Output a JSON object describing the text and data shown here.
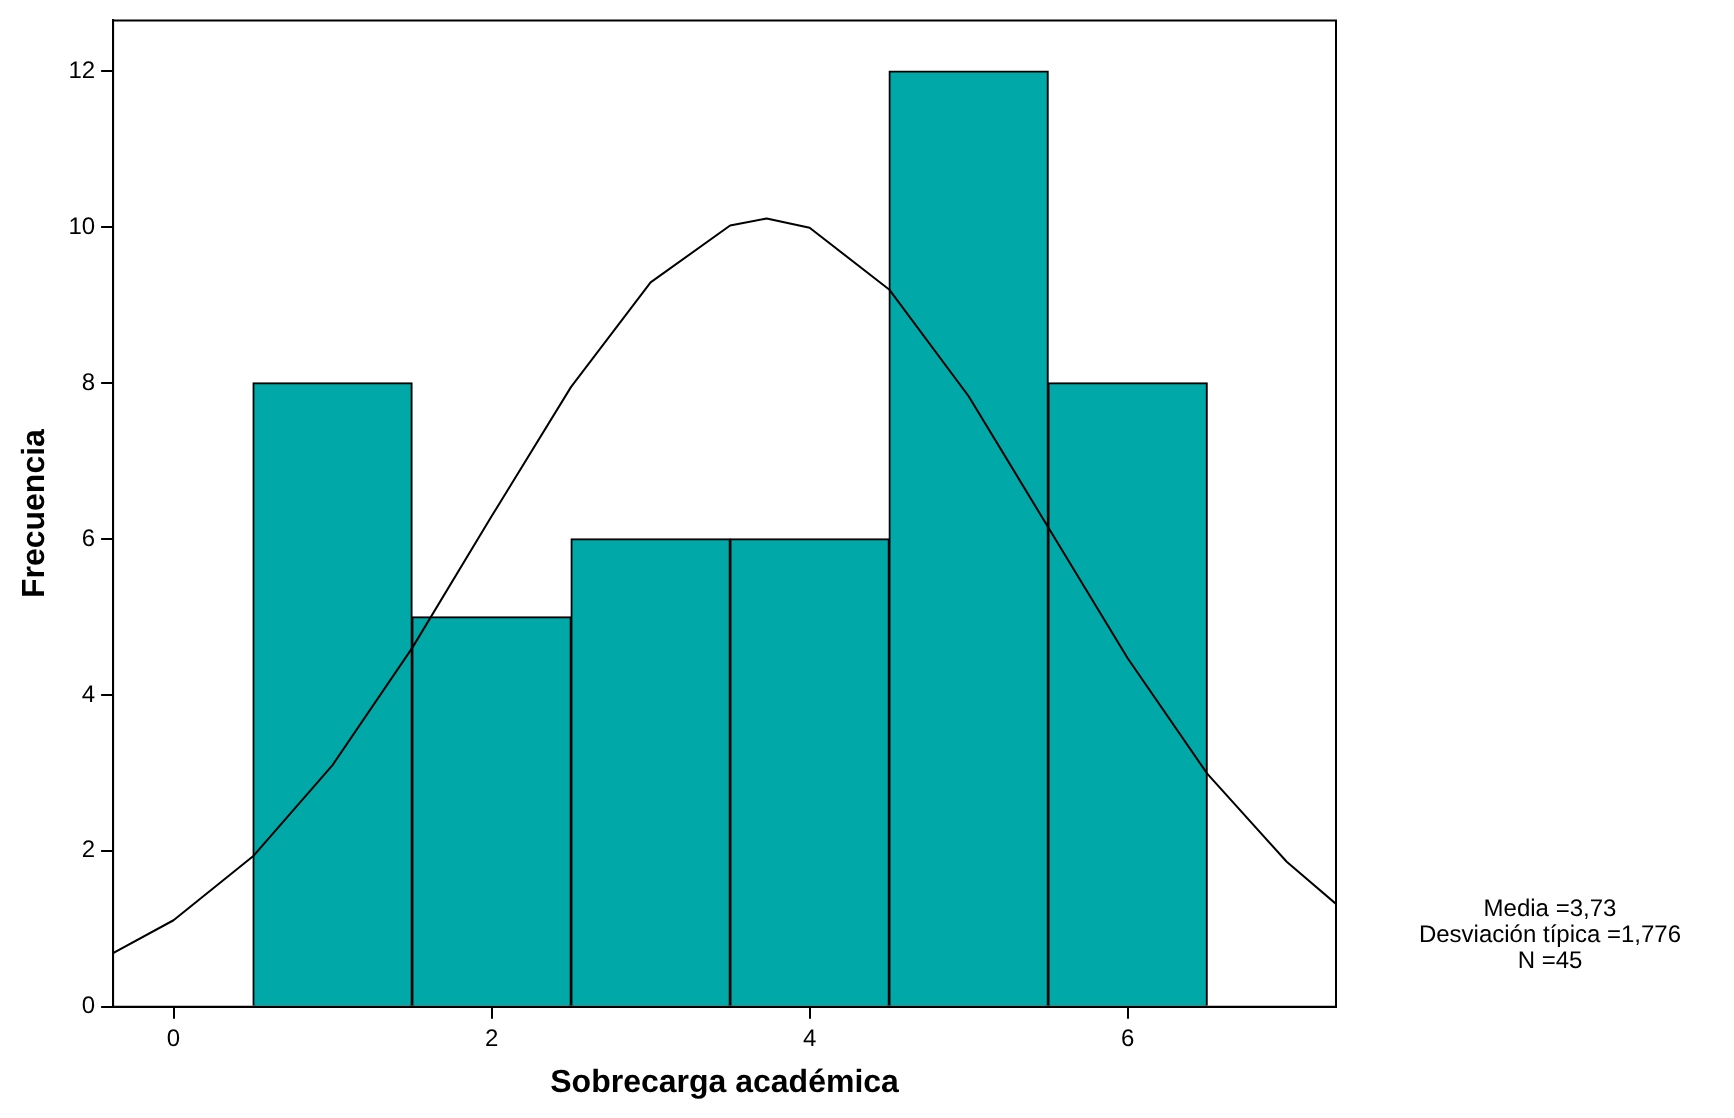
{
  "chart_data": {
    "type": "histogram",
    "xlabel": "Sobrecarga académica",
    "ylabel": "Frecuencia",
    "bins": [
      0.5,
      1.5,
      2.5,
      3.5,
      4.5,
      5.5,
      6.5
    ],
    "values": [
      8,
      5,
      6,
      6,
      12,
      8
    ],
    "color": "#00a8a8",
    "series": [
      {
        "type": "line",
        "color": "#000000",
        "x": [
          -0.38,
          0,
          0.5,
          1,
          1.5,
          2,
          2.5,
          3,
          3.5,
          3.73,
          4,
          4.5,
          5,
          5.5,
          6,
          6.5,
          7,
          7.31
        ],
        "values": [
          0.69,
          1.11,
          1.93,
          3.1,
          4.6,
          6.29,
          7.95,
          9.29,
          10.02,
          10.11,
          9.99,
          9.2,
          7.83,
          6.15,
          4.47,
          2.99,
          1.86,
          1.32
        ]
      }
    ],
    "xlim": [
      -0.38,
      7.31
    ],
    "xticks": [
      0,
      2,
      4,
      6
    ],
    "ylim": [
      0,
      12.65
    ],
    "yticks": [
      0,
      2,
      4,
      6,
      8,
      10,
      12
    ],
    "grid": false,
    "legend": false,
    "marker": "none",
    "line_style": "solid",
    "annotations": [
      "Media =3,73",
      "Desviación típica =1,776",
      "N =45"
    ]
  }
}
